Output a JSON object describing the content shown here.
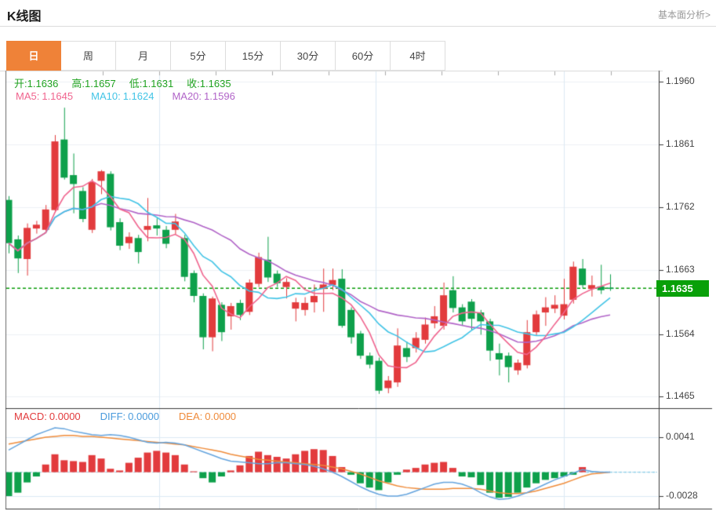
{
  "header": {
    "title": "K线图",
    "link": "基本面分析>"
  },
  "tabs": {
    "items": [
      "日",
      "周",
      "月",
      "5分",
      "15分",
      "30分",
      "60分",
      "4时"
    ],
    "active_index": 0
  },
  "kline_legend": {
    "open_label": "开:",
    "open": "1.1636",
    "high_label": "高:",
    "high": "1.1657",
    "low_label": "低:",
    "low": "1.1631",
    "close_label": "收:",
    "close": "1.1635",
    "ma5_label": "MA5:",
    "ma5": "1.1645",
    "ma10_label": "MA10:",
    "ma10": "1.1624",
    "ma20_label": "MA20:",
    "ma20": "1.1596"
  },
  "macd_legend": {
    "macd_label": "MACD:",
    "macd": "0.0000",
    "diff_label": "DIFF:",
    "diff": "0.0000",
    "dea_label": "DEA:",
    "dea": "0.0000"
  },
  "price_axis": {
    "tick_labels": [
      "1.1960",
      "1.1861",
      "1.1762",
      "1.1663",
      "1.1564",
      "1.1465"
    ],
    "current_label": "1.1635"
  },
  "macd_axis": {
    "tick_labels": [
      "0.0041",
      "-0.0028"
    ]
  },
  "colors": {
    "up_red": "#e23b3d",
    "down_green": "#0ea04b",
    "badge_green": "#09a009",
    "dashed_price_green": "#0a9d0a",
    "ma5_pink": "#f0648e",
    "ma10_cyan": "#42c4e6",
    "ma20_purple": "#b164c8",
    "diff_blue": "#64a4de",
    "dea_orange": "#f08c3a",
    "macd_label_red": "#e23b3d",
    "diff_label_blue": "#4a9bdc",
    "dea_label_orange": "#ef8b3b",
    "ohlc_text_green": "#21a321",
    "tab_active_bg": "#ef8238",
    "link_gray": "#999999",
    "axis_text": "#444444",
    "frame_dark": "#3a3a3a",
    "frame_light": "#d9d9d9",
    "grid_light": "#eef1f5",
    "vgrid_blue": "#dce9f4",
    "zero_dash_cyan": "#a9d6ea",
    "zero_dash_tail": "#8ecfe8"
  },
  "chart_data": [
    {
      "type": "candlestick",
      "title": "K线图 日",
      "yticks": [
        1.196,
        1.1861,
        1.1762,
        1.1663,
        1.1564,
        1.1465
      ],
      "ylim": [
        1.1448,
        1.1976
      ],
      "current_price": 1.1635,
      "ma_periods": [
        5,
        10,
        20
      ],
      "ma_last_values": {
        "ma5": 1.1645,
        "ma10": 1.1624,
        "ma20": 1.1596
      },
      "last_ohlc": {
        "open": 1.1636,
        "high": 1.1657,
        "low": 1.1631,
        "close": 1.1635
      },
      "ohlc": [
        [
          1.1774,
          1.178,
          1.169,
          1.1706
        ],
        [
          1.1712,
          1.1718,
          1.1659,
          1.1682
        ],
        [
          1.1681,
          1.1737,
          1.1655,
          1.173
        ],
        [
          1.1729,
          1.1741,
          1.1721,
          1.1735
        ],
        [
          1.1727,
          1.1766,
          1.1722,
          1.1759
        ],
        [
          1.1758,
          1.1876,
          1.1754,
          1.1866
        ],
        [
          1.1869,
          1.1919,
          1.1806,
          1.1809
        ],
        [
          1.1813,
          1.1847,
          1.1753,
          1.1799
        ],
        [
          1.1788,
          1.1794,
          1.1739,
          1.1744
        ],
        [
          1.1727,
          1.1807,
          1.1722,
          1.1802
        ],
        [
          1.1804,
          1.1821,
          1.1783,
          1.1819
        ],
        [
          1.1815,
          1.1819,
          1.1726,
          1.1731
        ],
        [
          1.1739,
          1.1745,
          1.1695,
          1.1702
        ],
        [
          1.1706,
          1.1723,
          1.1697,
          1.1716
        ],
        [
          1.1714,
          1.1719,
          1.1674,
          1.1692
        ],
        [
          1.1727,
          1.1777,
          1.1709,
          1.1733
        ],
        [
          1.1734,
          1.1745,
          1.1718,
          1.1729
        ],
        [
          1.1727,
          1.1733,
          1.1698,
          1.1705
        ],
        [
          1.1727,
          1.1752,
          1.172,
          1.174
        ],
        [
          1.1714,
          1.1719,
          1.1646,
          1.1653
        ],
        [
          1.1659,
          1.1663,
          1.1613,
          1.1623
        ],
        [
          1.1623,
          1.1627,
          1.1539,
          1.1558
        ],
        [
          1.1558,
          1.1622,
          1.1536,
          1.1619
        ],
        [
          1.1609,
          1.1613,
          1.1552,
          1.1566
        ],
        [
          1.1591,
          1.1612,
          1.157,
          1.1607
        ],
        [
          1.1612,
          1.1617,
          1.1585,
          1.1593
        ],
        [
          1.1598,
          1.1649,
          1.1593,
          1.1644
        ],
        [
          1.1642,
          1.1691,
          1.1637,
          1.1684
        ],
        [
          1.168,
          1.1716,
          1.1645,
          1.1652
        ],
        [
          1.1658,
          1.1663,
          1.1637,
          1.1643
        ],
        [
          1.1637,
          1.1651,
          1.1619,
          1.1645
        ],
        [
          1.1603,
          1.162,
          1.1583,
          1.1613
        ],
        [
          1.1601,
          1.1621,
          1.1592,
          1.1612
        ],
        [
          1.1613,
          1.1641,
          1.1597,
          1.1623
        ],
        [
          1.1634,
          1.1666,
          1.1598,
          1.1641
        ],
        [
          1.164,
          1.1666,
          1.1632,
          1.1648
        ],
        [
          1.165,
          1.1665,
          1.1573,
          1.1576
        ],
        [
          1.1601,
          1.1605,
          1.1548,
          1.1558
        ],
        [
          1.1564,
          1.1568,
          1.1524,
          1.1529
        ],
        [
          1.1529,
          1.1534,
          1.1509,
          1.1515
        ],
        [
          1.1521,
          1.1526,
          1.1469,
          1.1474
        ],
        [
          1.1478,
          1.1497,
          1.147,
          1.149
        ],
        [
          1.1487,
          1.1572,
          1.148,
          1.1545
        ],
        [
          1.1541,
          1.1551,
          1.1519,
          1.1527
        ],
        [
          1.1541,
          1.1566,
          1.1534,
          1.1557
        ],
        [
          1.1554,
          1.1589,
          1.1548,
          1.1578
        ],
        [
          1.158,
          1.1607,
          1.1572,
          1.1591
        ],
        [
          1.1576,
          1.1644,
          1.157,
          1.1624
        ],
        [
          1.1632,
          1.1654,
          1.1597,
          1.1604
        ],
        [
          1.1605,
          1.161,
          1.1576,
          1.1583
        ],
        [
          1.1614,
          1.1618,
          1.157,
          1.1587
        ],
        [
          1.1597,
          1.1601,
          1.1562,
          1.1583
        ],
        [
          1.1583,
          1.1587,
          1.1521,
          1.1537
        ],
        [
          1.1533,
          1.1548,
          1.1498,
          1.1523
        ],
        [
          1.1529,
          1.1534,
          1.1487,
          1.1511
        ],
        [
          1.1506,
          1.1523,
          1.1499,
          1.1518
        ],
        [
          1.1514,
          1.1585,
          1.1509,
          1.1566
        ],
        [
          1.1566,
          1.16,
          1.1561,
          1.1594
        ],
        [
          1.1597,
          1.1621,
          1.1576,
          1.1605
        ],
        [
          1.1603,
          1.1624,
          1.1596,
          1.1609
        ],
        [
          1.1592,
          1.165,
          1.1586,
          1.161
        ],
        [
          1.1617,
          1.1677,
          1.1611,
          1.1669
        ],
        [
          1.1666,
          1.1681,
          1.1635,
          1.164
        ],
        [
          1.1634,
          1.1655,
          1.1622,
          1.164
        ],
        [
          1.1638,
          1.1672,
          1.1626,
          1.1632
        ],
        [
          1.1636,
          1.1657,
          1.1631,
          1.1635
        ]
      ]
    },
    {
      "type": "macd",
      "title": "MACD",
      "yticks": [
        0.0041,
        -0.0028
      ],
      "hist": [
        -0.0028,
        -0.0024,
        -0.0012,
        -0.0005,
        0.0009,
        0.0021,
        0.0014,
        0.0013,
        0.0012,
        0.002,
        0.0016,
        0.0004,
        0.0002,
        0.0011,
        0.0017,
        0.0023,
        0.0025,
        0.0023,
        0.002,
        0.0009,
        0.0001,
        -0.0007,
        -0.0012,
        -0.0005,
        0.0002,
        0.0008,
        0.0019,
        0.0024,
        0.002,
        0.0018,
        0.0016,
        0.0021,
        0.0025,
        0.0027,
        0.0026,
        0.0019,
        0.0006,
        -0.0003,
        -0.0013,
        -0.0018,
        -0.0021,
        -0.0012,
        -0.0003,
        0.0003,
        0.0005,
        0.0009,
        0.0011,
        0.0012,
        0.0005,
        -0.0005,
        -0.0006,
        -0.0015,
        -0.0024,
        -0.003,
        -0.0029,
        -0.0024,
        -0.0018,
        -0.0013,
        -0.0009,
        -0.0007,
        -0.0005,
        -0.0003,
        0.0006,
        0.0,
        0.0,
        0.0
      ],
      "diff": [
        0.0026,
        0.0032,
        0.0038,
        0.0044,
        0.0048,
        0.0052,
        0.0051,
        0.0048,
        0.0046,
        0.0044,
        0.0043,
        0.0044,
        0.0043,
        0.0041,
        0.0038,
        0.0035,
        0.0034,
        0.0035,
        0.0034,
        0.0032,
        0.0028,
        0.0024,
        0.002,
        0.0016,
        0.0013,
        0.0012,
        0.0011,
        0.001,
        0.001,
        0.0011,
        0.0011,
        0.001,
        0.0009,
        0.0007,
        0.0004,
        0.0,
        -0.0005,
        -0.0011,
        -0.0017,
        -0.0022,
        -0.0026,
        -0.0028,
        -0.0028,
        -0.0026,
        -0.0022,
        -0.0018,
        -0.0014,
        -0.0012,
        -0.0012,
        -0.0014,
        -0.0018,
        -0.0024,
        -0.0029,
        -0.0032,
        -0.0031,
        -0.0028,
        -0.0024,
        -0.0019,
        -0.0014,
        -0.0009,
        -0.0005,
        -0.0001,
        0.0003,
        0.0001,
        0.0,
        0.0
      ],
      "dea": [
        0.0033,
        0.0035,
        0.0037,
        0.0039,
        0.0041,
        0.0042,
        0.0043,
        0.0043,
        0.0042,
        0.0042,
        0.0041,
        0.004,
        0.0039,
        0.0038,
        0.0037,
        0.0036,
        0.0035,
        0.0034,
        0.0033,
        0.0032,
        0.003,
        0.0028,
        0.0026,
        0.0024,
        0.0021,
        0.0019,
        0.0017,
        0.0015,
        0.0014,
        0.0013,
        0.0012,
        0.0011,
        0.001,
        0.0009,
        0.0008,
        0.0006,
        0.0004,
        0.0001,
        -0.0002,
        -0.0006,
        -0.001,
        -0.0013,
        -0.0016,
        -0.0018,
        -0.0019,
        -0.002,
        -0.002,
        -0.002,
        -0.0019,
        -0.0019,
        -0.0019,
        -0.002,
        -0.0022,
        -0.0024,
        -0.0025,
        -0.0025,
        -0.0024,
        -0.0022,
        -0.0019,
        -0.0016,
        -0.0013,
        -0.0009,
        -0.0005,
        -0.0002,
        -0.0001,
        0.0
      ]
    }
  ]
}
